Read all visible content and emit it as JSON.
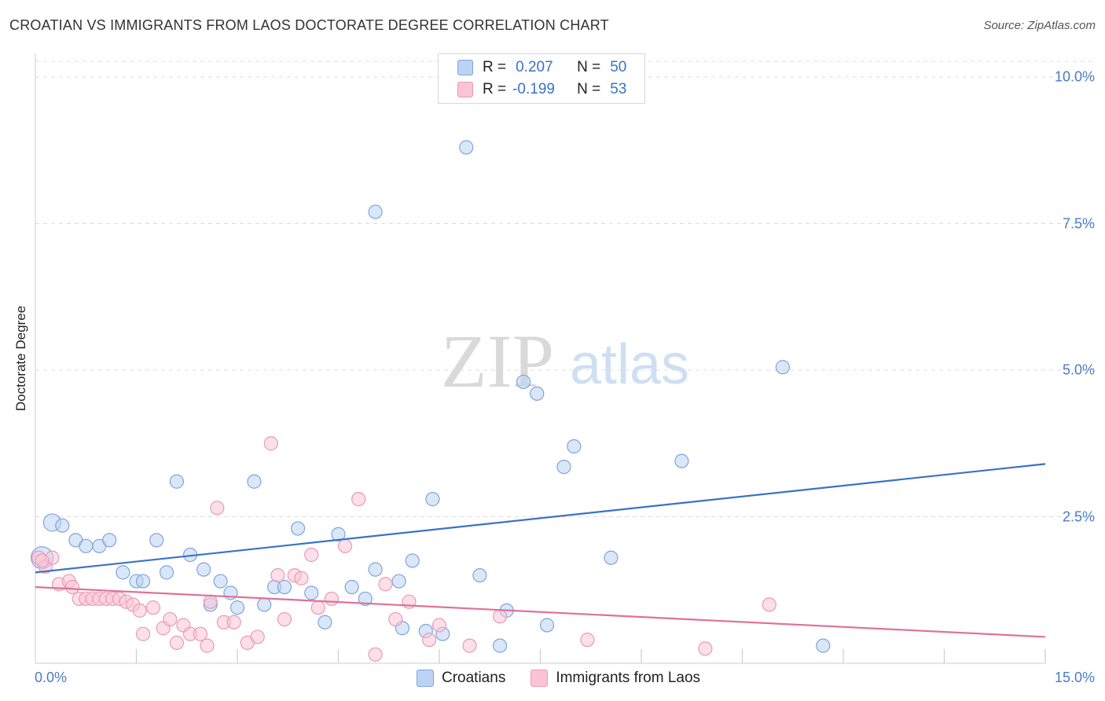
{
  "title": "CROATIAN VS IMMIGRANTS FROM LAOS DOCTORATE DEGREE CORRELATION CHART",
  "source": "Source: ZipAtlas.com",
  "watermark": {
    "zip": "ZIP",
    "atlas": "atlas"
  },
  "colors": {
    "blue": "#3a72c8",
    "pink": "#e0709a",
    "blue_fill": "#bcd3f3",
    "pink_fill": "#f9c5d5"
  },
  "legend": {
    "r_label": "R =",
    "n_label": "N =",
    "series1": {
      "r": "0.207",
      "n": "50"
    },
    "series2": {
      "r": "-0.199",
      "n": "53"
    }
  },
  "chart_data": {
    "type": "scatter",
    "title": "CROATIAN VS IMMIGRANTS FROM LAOS DOCTORATE DEGREE CORRELATION CHART",
    "xlabel": "",
    "ylabel": "Doctorate Degree",
    "xlim": [
      0,
      15
    ],
    "ylim": [
      0,
      10.5
    ],
    "x_tick_labels": [
      "0.0%",
      "15.0%"
    ],
    "y_ticks": [
      2.5,
      5.0,
      7.5,
      10.0
    ],
    "y_tick_labels": [
      "2.5%",
      "5.0%",
      "7.5%",
      "10.0%"
    ],
    "grid": true,
    "legend_position": "top-center",
    "series": [
      {
        "name": "Croatians",
        "color": "#3a72c8",
        "trend": {
          "x": [
            0,
            15
          ],
          "y": [
            1.55,
            3.4
          ]
        },
        "points": [
          [
            0.1,
            1.8
          ],
          [
            0.25,
            2.4
          ],
          [
            0.4,
            2.35
          ],
          [
            0.6,
            2.1
          ],
          [
            0.75,
            2.0
          ],
          [
            0.95,
            2.0
          ],
          [
            1.1,
            2.1
          ],
          [
            1.3,
            1.55
          ],
          [
            1.5,
            1.4
          ],
          [
            1.6,
            1.4
          ],
          [
            1.8,
            2.1
          ],
          [
            1.95,
            1.55
          ],
          [
            2.1,
            3.1
          ],
          [
            2.3,
            1.85
          ],
          [
            2.5,
            1.6
          ],
          [
            2.6,
            1.0
          ],
          [
            2.75,
            1.4
          ],
          [
            2.9,
            1.2
          ],
          [
            3.0,
            0.95
          ],
          [
            3.25,
            3.1
          ],
          [
            3.4,
            1.0
          ],
          [
            3.55,
            1.3
          ],
          [
            3.7,
            1.3
          ],
          [
            3.9,
            2.3
          ],
          [
            4.1,
            1.2
          ],
          [
            4.3,
            0.7
          ],
          [
            4.5,
            2.2
          ],
          [
            4.7,
            1.3
          ],
          [
            4.9,
            1.1
          ],
          [
            5.05,
            1.6
          ],
          [
            5.05,
            7.7
          ],
          [
            5.4,
            1.4
          ],
          [
            5.45,
            0.6
          ],
          [
            5.6,
            1.75
          ],
          [
            5.8,
            0.55
          ],
          [
            5.9,
            2.8
          ],
          [
            6.05,
            0.5
          ],
          [
            6.4,
            8.8
          ],
          [
            6.6,
            1.5
          ],
          [
            6.9,
            0.3
          ],
          [
            7.0,
            0.9
          ],
          [
            7.25,
            4.8
          ],
          [
            7.45,
            4.6
          ],
          [
            7.6,
            0.65
          ],
          [
            7.85,
            3.35
          ],
          [
            8.0,
            3.7
          ],
          [
            8.55,
            1.8
          ],
          [
            9.6,
            3.45
          ],
          [
            11.1,
            5.05
          ],
          [
            11.7,
            0.3
          ]
        ]
      },
      {
        "name": "Immigrants from Laos",
        "color": "#e0709a",
        "trend": {
          "x": [
            0,
            15
          ],
          "y": [
            1.3,
            0.45
          ]
        },
        "points": [
          [
            0.05,
            1.8
          ],
          [
            0.15,
            1.65
          ],
          [
            0.25,
            1.8
          ],
          [
            0.35,
            1.35
          ],
          [
            0.5,
            1.4
          ],
          [
            0.55,
            1.3
          ],
          [
            0.65,
            1.1
          ],
          [
            0.75,
            1.1
          ],
          [
            0.85,
            1.1
          ],
          [
            0.95,
            1.1
          ],
          [
            1.05,
            1.1
          ],
          [
            1.15,
            1.1
          ],
          [
            1.25,
            1.1
          ],
          [
            1.35,
            1.05
          ],
          [
            1.45,
            1.0
          ],
          [
            1.55,
            0.9
          ],
          [
            1.6,
            0.5
          ],
          [
            1.75,
            0.95
          ],
          [
            1.9,
            0.6
          ],
          [
            2.0,
            0.75
          ],
          [
            2.1,
            0.35
          ],
          [
            2.2,
            0.65
          ],
          [
            2.3,
            0.5
          ],
          [
            2.45,
            0.5
          ],
          [
            2.55,
            0.3
          ],
          [
            2.6,
            1.05
          ],
          [
            2.7,
            2.65
          ],
          [
            2.8,
            0.7
          ],
          [
            2.95,
            0.7
          ],
          [
            3.15,
            0.35
          ],
          [
            3.3,
            0.45
          ],
          [
            3.5,
            3.75
          ],
          [
            3.6,
            1.5
          ],
          [
            3.7,
            0.75
          ],
          [
            3.85,
            1.5
          ],
          [
            3.95,
            1.45
          ],
          [
            4.1,
            1.85
          ],
          [
            4.2,
            0.95
          ],
          [
            4.4,
            1.1
          ],
          [
            4.6,
            2.0
          ],
          [
            4.8,
            2.8
          ],
          [
            5.05,
            0.15
          ],
          [
            5.2,
            1.35
          ],
          [
            5.35,
            0.75
          ],
          [
            5.55,
            1.05
          ],
          [
            5.85,
            0.4
          ],
          [
            6.0,
            0.65
          ],
          [
            6.45,
            0.3
          ],
          [
            6.9,
            0.8
          ],
          [
            8.2,
            0.4
          ],
          [
            9.95,
            0.25
          ],
          [
            10.9,
            1.0
          ],
          [
            0.1,
            1.75
          ]
        ]
      }
    ]
  }
}
